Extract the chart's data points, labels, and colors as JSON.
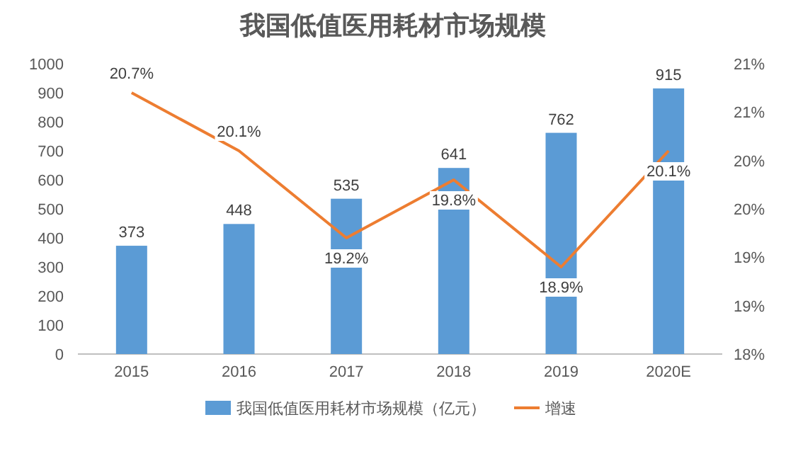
{
  "chart_data": {
    "type": "bar",
    "title": "我国低值医用耗材市场规模",
    "categories": [
      "2015",
      "2016",
      "2017",
      "2018",
      "2019",
      "2020E"
    ],
    "series": [
      {
        "name": "我国低值医用耗材市场规模（亿元）",
        "color": "#5b9bd5",
        "values": [
          373,
          448,
          535,
          641,
          762,
          915
        ]
      },
      {
        "name": "增速",
        "type": "line",
        "axis": "y2",
        "color": "#ed7d31",
        "values": [
          20.7,
          20.1,
          19.2,
          19.8,
          18.9,
          20.1
        ],
        "value_labels": [
          "20.7%",
          "20.1%",
          "19.2%",
          "19.8%",
          "18.9%",
          "20.1%"
        ]
      }
    ],
    "ylim": [
      0,
      1000
    ],
    "yticks": [
      0,
      100,
      200,
      300,
      400,
      500,
      600,
      700,
      800,
      900,
      1000
    ],
    "y2lim": [
      18,
      21
    ],
    "y2ticks": [
      {
        "value": 18,
        "label": "18%"
      },
      {
        "value": 18.5,
        "label": "19%"
      },
      {
        "value": 19,
        "label": "19%"
      },
      {
        "value": 19.5,
        "label": "20%"
      },
      {
        "value": 20,
        "label": "20%"
      },
      {
        "value": 20.5,
        "label": "21%"
      },
      {
        "value": 21,
        "label": "21%"
      }
    ],
    "data_labels": true,
    "legend": "bottom",
    "grid": false
  }
}
